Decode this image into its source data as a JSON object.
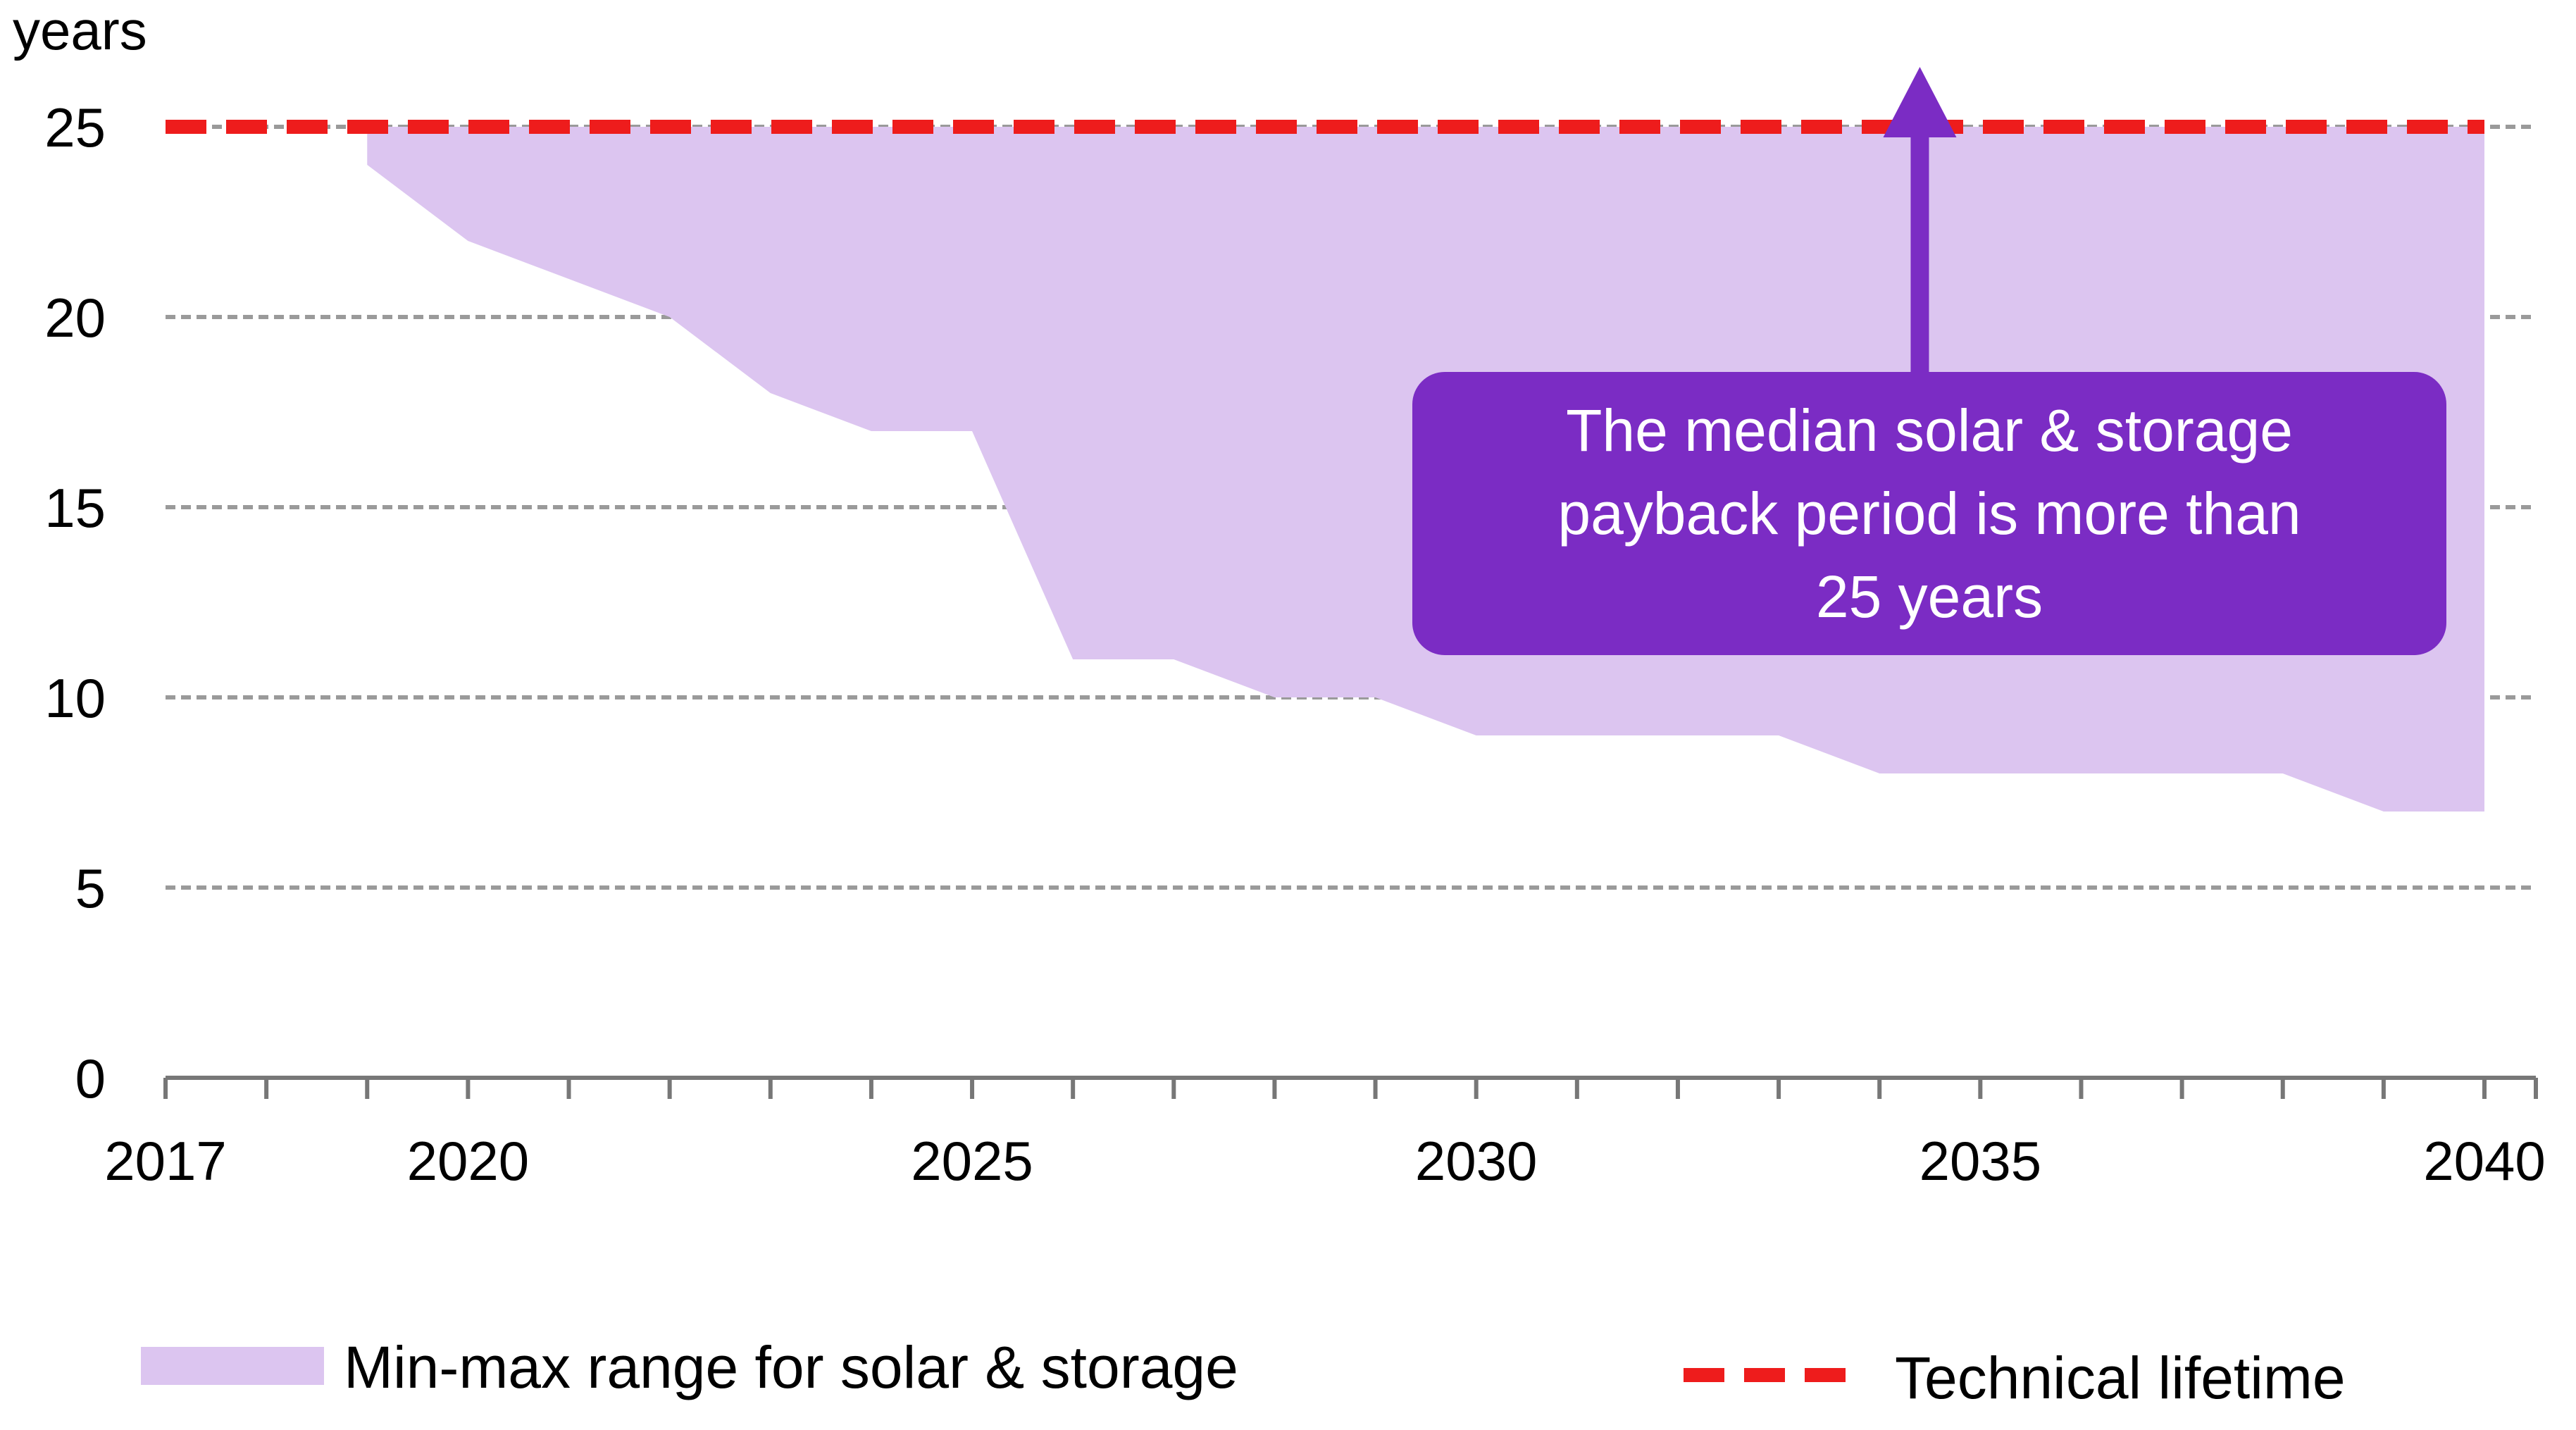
{
  "chart_data": {
    "type": "area",
    "ylabel": "years",
    "xlabel": "",
    "ylim": [
      0,
      25
    ],
    "xlim": [
      2017,
      2040
    ],
    "y_ticks": [
      "0",
      "5",
      "10",
      "15",
      "20",
      "25"
    ],
    "x_ticks": [
      "2017",
      "2020",
      "2025",
      "2030",
      "2035",
      "2040"
    ],
    "grid": "horizontal dashed",
    "series": [
      {
        "name": "Min-max range for solar & storage",
        "kind": "range_area",
        "color": "#dcc5f0",
        "x": [
          2019,
          2020,
          2021,
          2022,
          2023,
          2024,
          2025,
          2026,
          2027,
          2028,
          2029,
          2030,
          2031,
          2032,
          2033,
          2034,
          2035,
          2036,
          2037,
          2038,
          2039,
          2040
        ],
        "min": [
          24,
          22,
          21,
          20,
          18,
          17,
          17,
          11,
          11,
          10,
          10,
          9,
          9,
          9,
          9,
          8,
          8,
          8,
          8,
          8,
          7,
          7
        ],
        "max": [
          25,
          25,
          25,
          25,
          25,
          25,
          25,
          25,
          25,
          25,
          25,
          25,
          25,
          25,
          25,
          25,
          25,
          25,
          25,
          25,
          25,
          25
        ]
      },
      {
        "name": "Technical lifetime",
        "kind": "dashed_line",
        "color": "#ee1c1c",
        "x": [
          2017,
          2040
        ],
        "values": [
          25,
          25
        ]
      }
    ],
    "annotation": {
      "lines": [
        "The median solar & storage",
        "payback period is more than",
        "25 years"
      ],
      "arrow_x": 2034.4,
      "box_color": "#7b2cc4",
      "text_color": "#ffffff"
    },
    "legend": {
      "placement": "bottom",
      "items": [
        "Min-max range for solar & storage",
        "Technical lifetime"
      ]
    }
  }
}
